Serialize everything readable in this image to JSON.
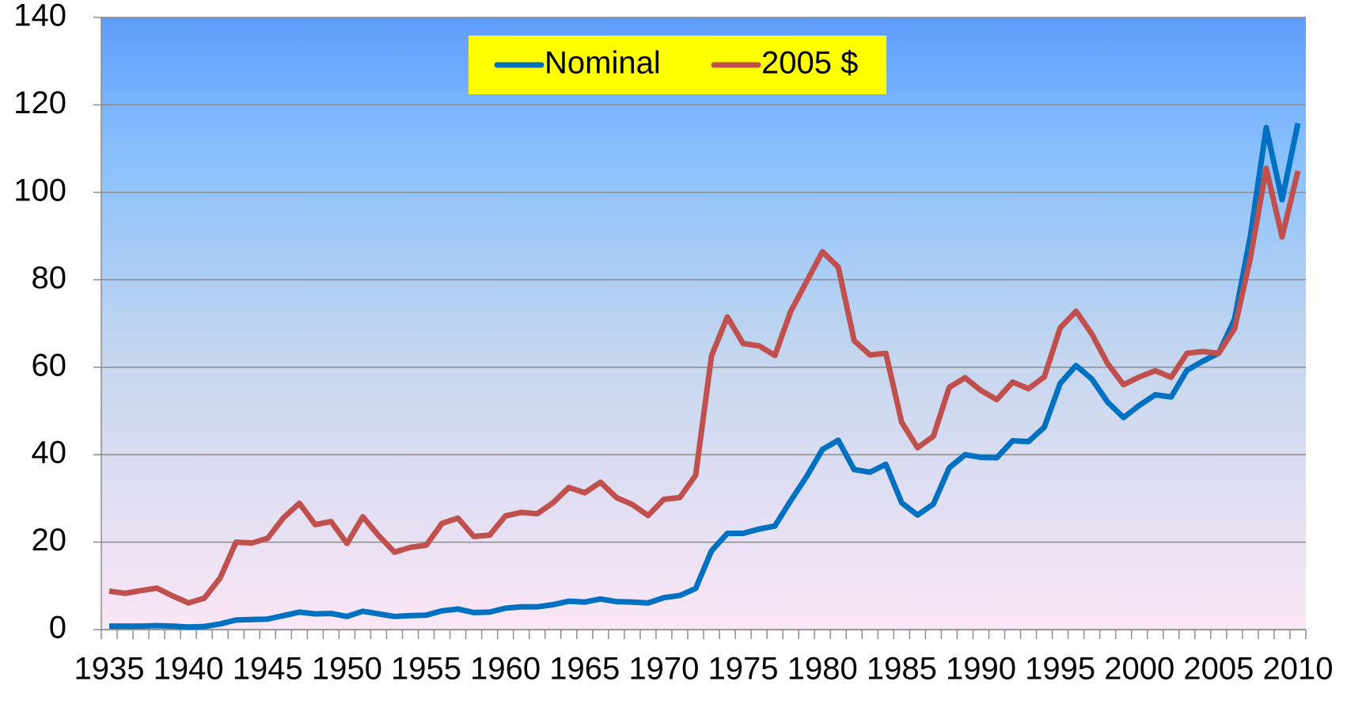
{
  "chart_data": {
    "type": "line",
    "x": [
      1935,
      1936,
      1937,
      1938,
      1939,
      1940,
      1941,
      1942,
      1943,
      1944,
      1945,
      1946,
      1947,
      1948,
      1949,
      1950,
      1951,
      1952,
      1953,
      1954,
      1955,
      1956,
      1957,
      1958,
      1959,
      1960,
      1961,
      1962,
      1963,
      1964,
      1965,
      1966,
      1967,
      1968,
      1969,
      1970,
      1971,
      1972,
      1973,
      1974,
      1975,
      1976,
      1977,
      1978,
      1979,
      1980,
      1981,
      1982,
      1983,
      1984,
      1985,
      1986,
      1987,
      1988,
      1989,
      1990,
      1991,
      1992,
      1993,
      1994,
      1995,
      1996,
      1997,
      1998,
      1999,
      2000,
      2001,
      2002,
      2003,
      2004,
      2005,
      2006,
      2007,
      2008,
      2009,
      2010
    ],
    "series": [
      {
        "name": "Nominal",
        "color": "#0070c0",
        "values": [
          0.8,
          0.8,
          0.8,
          0.9,
          0.8,
          0.6,
          0.7,
          1.3,
          2.2,
          2.3,
          2.4,
          3.2,
          4.0,
          3.6,
          3.7,
          3.0,
          4.2,
          3.6,
          3.0,
          3.2,
          3.3,
          4.3,
          4.7,
          3.9,
          4.0,
          4.9,
          5.2,
          5.2,
          5.7,
          6.5,
          6.3,
          7.0,
          6.4,
          6.3,
          6.1,
          7.3,
          7.8,
          9.4,
          18,
          22,
          22,
          23,
          23.7,
          29.5,
          35,
          41.2,
          43.3,
          36.6,
          36,
          37.8,
          29,
          26.2,
          28.7,
          37,
          40,
          39.4,
          39.3,
          43.2,
          43,
          46.3,
          56.3,
          60.4,
          57.3,
          52,
          48.5,
          51.3,
          53.7,
          53.2,
          59.3,
          61.4,
          63.2,
          71,
          90,
          114.8,
          98.3,
          115.8
        ]
      },
      {
        "name": "2005 $",
        "color": "#c0504d",
        "values": [
          8.8,
          8.3,
          8.9,
          9.5,
          7.7,
          6.1,
          7.2,
          11.8,
          20,
          19.8,
          20.9,
          25.6,
          28.9,
          24,
          24.7,
          19.7,
          25.8,
          21.5,
          17.7,
          18.8,
          19.3,
          24.3,
          25.5,
          21.3,
          21.6,
          26,
          26.8,
          26.5,
          29,
          32.5,
          31.3,
          33.7,
          30.2,
          28.6,
          26.1,
          29.8,
          30.2,
          35.3,
          62.6,
          71.5,
          65.4,
          64.9,
          62.7,
          72.8,
          79.6,
          86.4,
          82.9,
          66.1,
          62.8,
          63.2,
          47.4,
          41.6,
          44.2,
          55.4,
          57.6,
          54.7,
          52.6,
          56.6,
          55.1,
          57.8,
          69,
          72.8,
          67.6,
          60.8,
          56,
          57.8,
          59.2,
          57.7,
          63.2,
          63.6,
          63.2,
          68.8,
          85,
          105.5,
          89.8,
          104.9
        ]
      }
    ],
    "xlim": [
      1934.5,
      2010.5
    ],
    "xticks": [
      1935,
      1940,
      1945,
      1950,
      1955,
      1960,
      1965,
      1970,
      1975,
      1980,
      1985,
      1990,
      1995,
      2000,
      2005,
      2010
    ],
    "ylim": [
      0,
      140
    ],
    "yticks": [
      0,
      20,
      40,
      60,
      80,
      100,
      120,
      140
    ],
    "grid": true,
    "legend": "top",
    "legend_background": "#ffff00"
  }
}
